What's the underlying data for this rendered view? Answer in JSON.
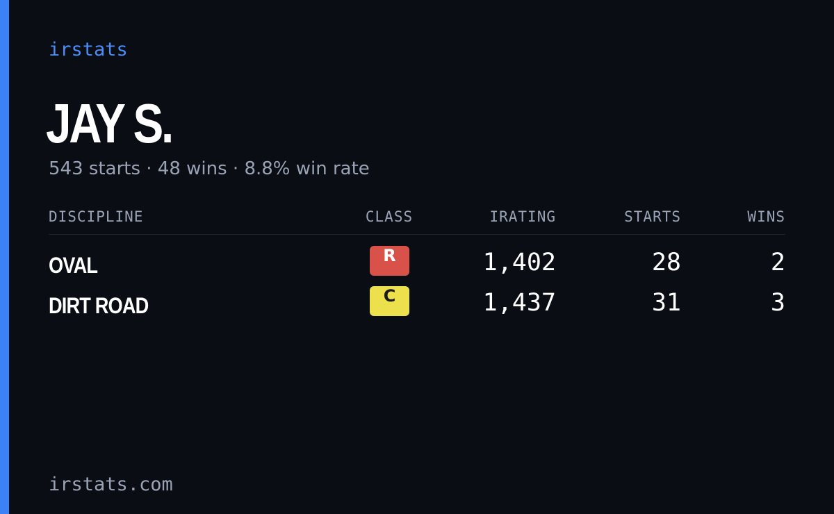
{
  "brand": "irstats",
  "driver": {
    "name": "JAY S.",
    "summary": "543 starts · 48 wins · 8.8% win rate"
  },
  "table": {
    "headers": [
      "DISCIPLINE",
      "CLASS",
      "IRATING",
      "STARTS",
      "WINS"
    ],
    "rows": [
      [
        "OVAL",
        "R",
        "1,402",
        "28",
        "2"
      ],
      [
        "DIRT ROAD",
        "C",
        "1,437",
        "31",
        "3"
      ]
    ]
  },
  "footer": "irstats.com"
}
